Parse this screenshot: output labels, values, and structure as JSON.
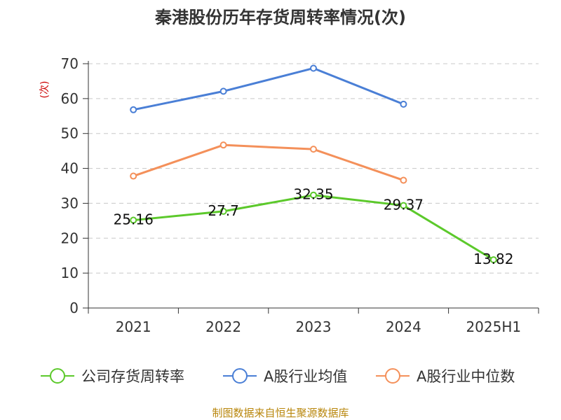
{
  "chart_data": {
    "type": "line",
    "title": "秦港股份历年存货周转率情况(次)",
    "ylabel": "(次)",
    "xlabel": "",
    "categories": [
      "2021",
      "2022",
      "2023",
      "2024",
      "2025H1"
    ],
    "ylim": [
      0,
      70
    ],
    "yticks": [
      0,
      10,
      20,
      30,
      40,
      50,
      60,
      70
    ],
    "grid": true,
    "legend_position": "bottom",
    "series": [
      {
        "name": "公司存货周转率",
        "color": "#5cc92b",
        "values": [
          25.16,
          27.7,
          32.35,
          29.37,
          13.82
        ],
        "labels": [
          "25.16",
          "27.7",
          "32.35",
          "29.37",
          "13.82"
        ],
        "show_labels": true
      },
      {
        "name": "A股行业均值",
        "color": "#4a7fd6",
        "values": [
          56.8,
          62.1,
          68.7,
          58.4,
          null
        ],
        "show_labels": false
      },
      {
        "name": "A股行业中位数",
        "color": "#f4905a",
        "values": [
          37.8,
          46.7,
          45.5,
          36.6,
          null
        ],
        "show_labels": false
      }
    ],
    "source": "制图数据来自恒生聚源数据库",
    "ylabel_color": "#cc0000",
    "source_color": "#b8860b"
  }
}
